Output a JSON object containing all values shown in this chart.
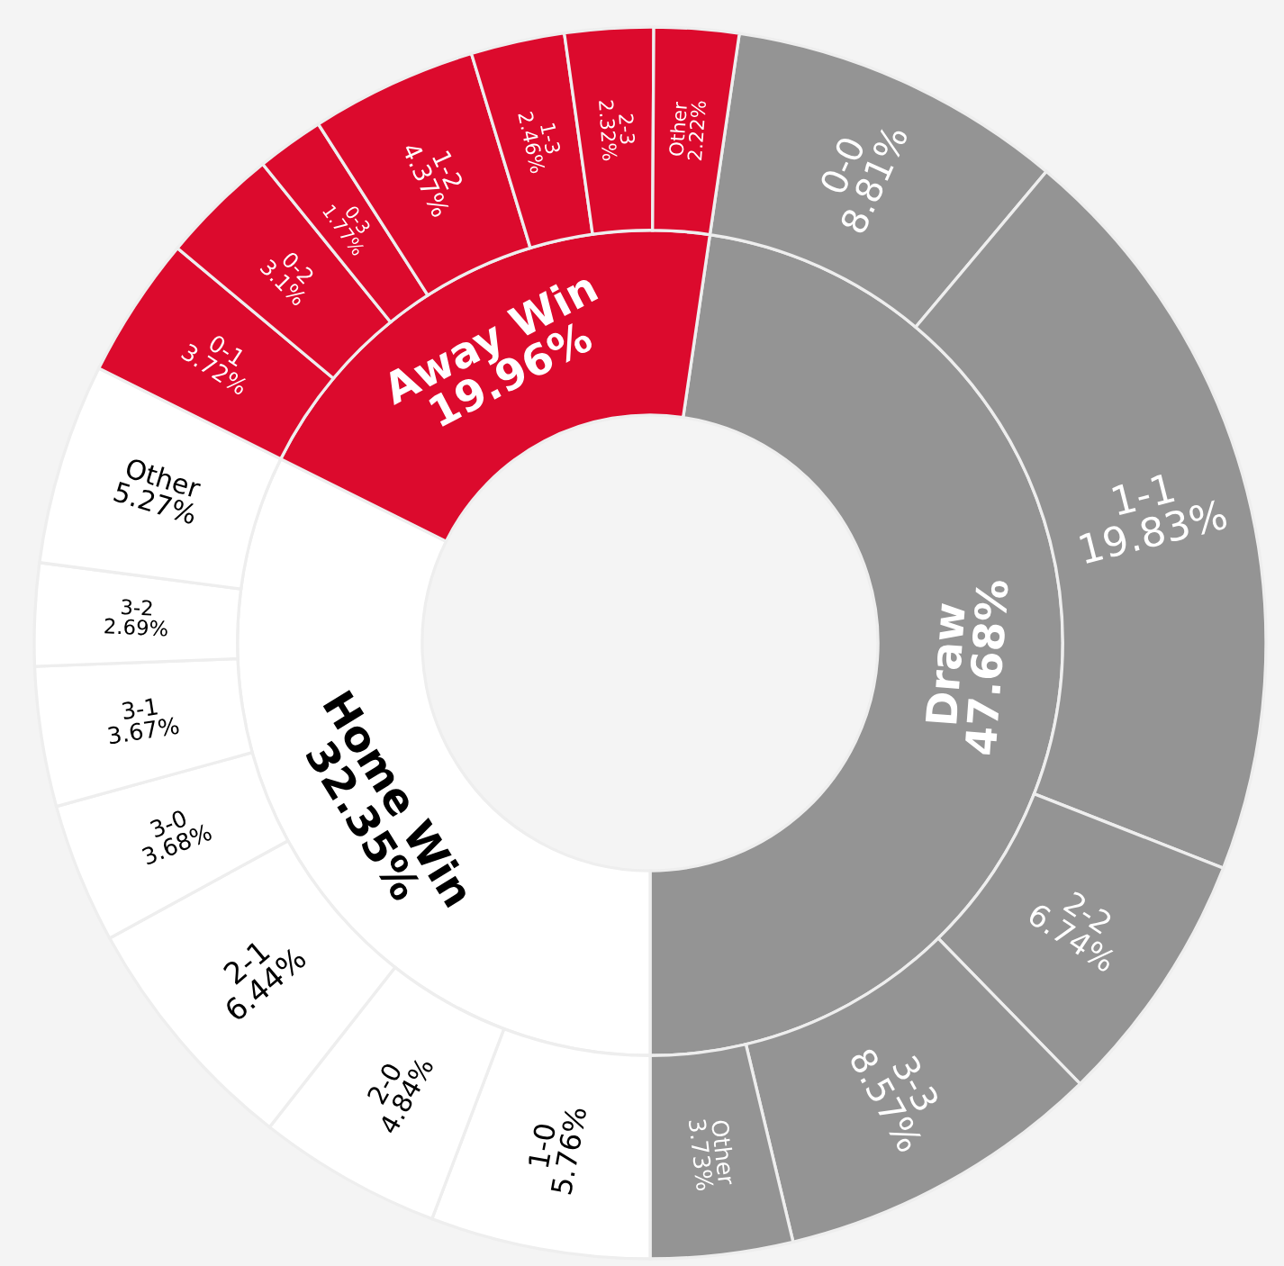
{
  "chart_data": {
    "type": "donut",
    "data_labels": true,
    "series": [
      {
        "values": [
          47.68,
          32.35,
          19.96
        ],
        "value_labels": [
          "Draw\n47.68%",
          "Home Win\n32.35%",
          "Away Win\n19.96%"
        ],
        "colors": [
          "#949494",
          "#ffffff",
          "#dc0a2d"
        ]
      },
      {
        "values": [
          8.81,
          19.83,
          6.74,
          8.57,
          3.73,
          5.76,
          4.84,
          6.44,
          3.68,
          3.67,
          2.69,
          5.27,
          3.72,
          3.1,
          1.77,
          4.37,
          2.46,
          2.32,
          2.22
        ],
        "value_labels": [
          "0-0\n8.81%",
          "1-1\n19.83%",
          "2-2\n6.74%",
          "3-3\n8.57%",
          "Other\n3.73%",
          "1-0\n5.76%",
          "2-0\n4.84%",
          "2-1\n6.44%",
          "3-0\n3.68%",
          "3-1\n3.67%",
          "3-2\n2.69%",
          "Other\n5.27%",
          "0-1\n3.72%",
          "0-2\n3.1%",
          "0-3\n1.77%",
          "1-2\n4.37%",
          "1-3\n2.46%",
          "2-3\n2.32%",
          "Other\n2.22%"
        ],
        "colors": [
          "#949494",
          "#949494",
          "#949494",
          "#949494",
          "#949494",
          "#ffffff",
          "#ffffff",
          "#ffffff",
          "#ffffff",
          "#ffffff",
          "#ffffff",
          "#ffffff",
          "#dc0a2d",
          "#dc0a2d",
          "#dc0a2d",
          "#dc0a2d",
          "#dc0a2d",
          "#dc0a2d",
          "#dc0a2d"
        ]
      }
    ]
  }
}
